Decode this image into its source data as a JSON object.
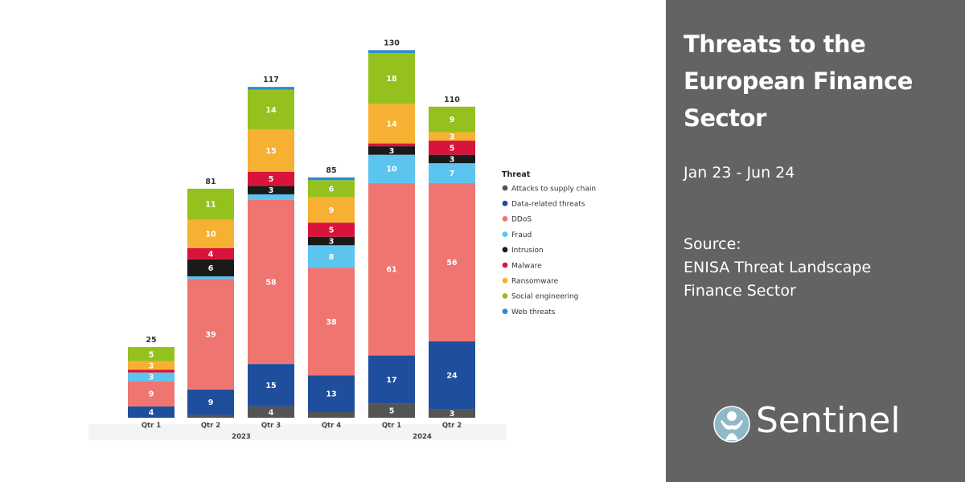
{
  "chart_data": {
    "type": "bar",
    "stacked": true,
    "categories": [
      "Qtr 1",
      "Qtr 2",
      "Qtr 3",
      "Qtr 4",
      "Qtr 1",
      "Qtr 2"
    ],
    "year_groups": [
      {
        "label": "2023",
        "categories": [
          "Qtr 1",
          "Qtr 2",
          "Qtr 3",
          "Qtr 4"
        ]
      },
      {
        "label": "2024",
        "categories": [
          "Qtr 1",
          "Qtr 2"
        ]
      }
    ],
    "totals": [
      25,
      81,
      117,
      85,
      130,
      110
    ],
    "legend_title": "Threat",
    "legend_position": "right",
    "series": [
      {
        "name": "Attacks to supply chain",
        "color": "#545454",
        "values": [
          0,
          1,
          4,
          2,
          5,
          3
        ]
      },
      {
        "name": "Data-related threats",
        "color": "#1f4e9c",
        "values": [
          4,
          9,
          15,
          13,
          17,
          24
        ]
      },
      {
        "name": "DDoS",
        "color": "#ef7570",
        "values": [
          9,
          39,
          58,
          38,
          61,
          56
        ]
      },
      {
        "name": "Fraud",
        "color": "#5bc4ef",
        "values": [
          3,
          1,
          2,
          8,
          10,
          7
        ]
      },
      {
        "name": "Intrusion",
        "color": "#1a1a1a",
        "values": [
          0,
          6,
          3,
          3,
          3,
          3
        ]
      },
      {
        "name": "Malware",
        "color": "#d9143c",
        "values": [
          1,
          4,
          5,
          5,
          1,
          5
        ]
      },
      {
        "name": "Ransomware",
        "color": "#f7b132",
        "values": [
          3,
          10,
          15,
          9,
          14,
          3
        ]
      },
      {
        "name": "Social engineering",
        "color": "#95c11f",
        "values": [
          5,
          11,
          14,
          6,
          18,
          9
        ]
      },
      {
        "name": "Web threats",
        "color": "#2c8cc7",
        "values": [
          0,
          0,
          1,
          1,
          1,
          0
        ]
      }
    ],
    "label_threshold": 3,
    "ylim": [
      0,
      135
    ]
  },
  "panel": {
    "title": "Threats to the European Finance Sector",
    "date_range": "Jan 23 - Jun 24",
    "source_label": "Source:",
    "source_line1": "ENISA Threat Landscape",
    "source_line2": "Finance Sector",
    "brand": "Sentinel",
    "brand_color": "#8fb9c7"
  }
}
